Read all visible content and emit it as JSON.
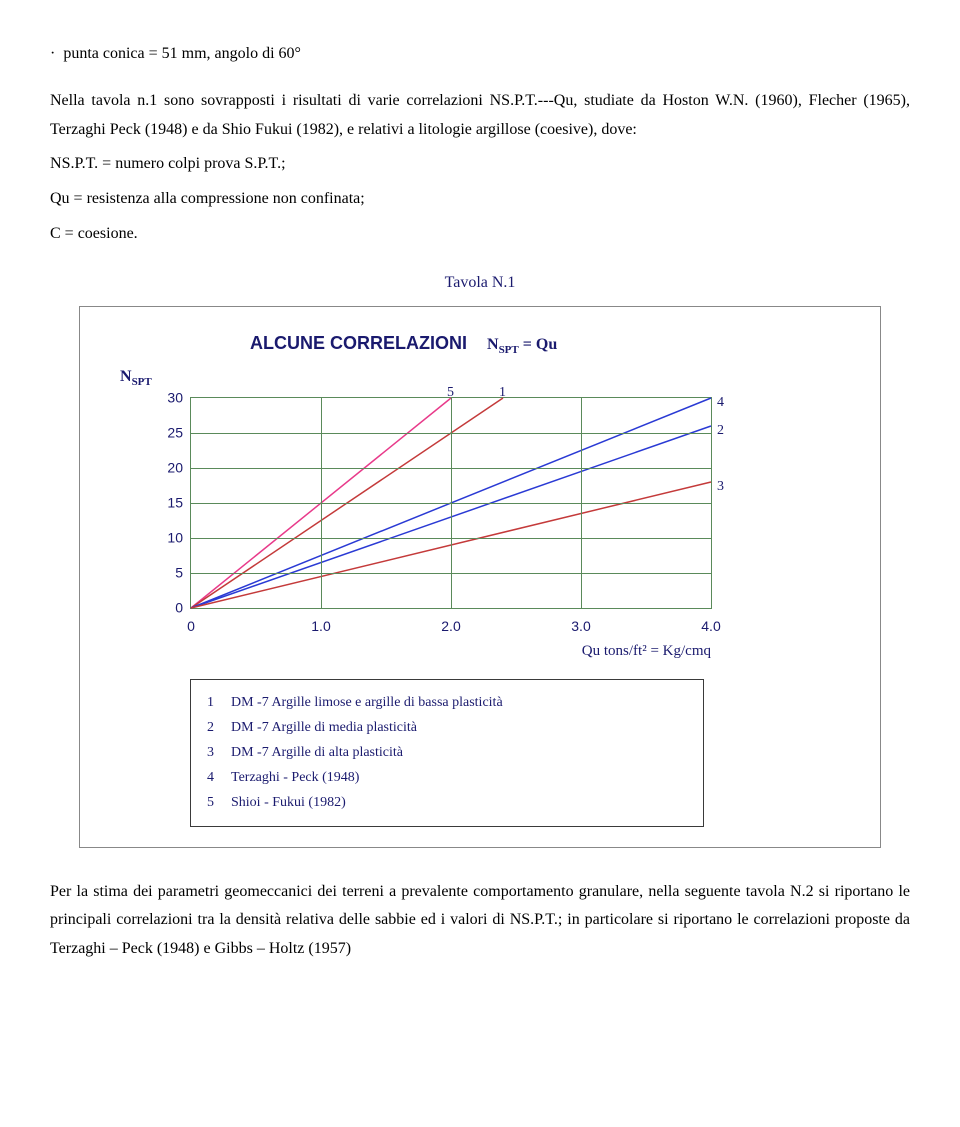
{
  "bullet_line": "punta conica   = 51 mm, angolo di 60°",
  "intro_text": {
    "p1a": "Nella tavola n.1 sono sovrapposti i risultati di varie correlazioni N",
    "p1b": "S.P.T.",
    "p1c": "---Qu, studiate da Hoston W.N. (1960), Flecher (1965), Terzaghi Peck (1948) e da Shio Fukui (1982), e relativi a litologie argillose (coesive), dove:",
    "p2a": "N",
    "p2b": "S.P.T.",
    "p2c": " = numero colpi prova S.P.T.;",
    "p3": "Qu = resistenza alla compressione non confinata;",
    "p4": "C = coesione."
  },
  "tavola_label": "Tavola N.1",
  "chart": {
    "title": "ALCUNE CORRELAZIONI",
    "title_eq_left": "N",
    "title_eq_sub": "SPT",
    "title_eq_right": " = Qu",
    "y_axis_label": "N",
    "y_axis_label_sub": "SPT",
    "x_unit_label": "Qu  tons/ft²  = Kg/cmq",
    "xlim": [
      0,
      4.0
    ],
    "ylim": [
      0,
      30
    ],
    "xticks": [
      "0",
      "1.0",
      "2.0",
      "3.0",
      "4.0"
    ],
    "yticks": [
      "0",
      "5",
      "10",
      "15",
      "20",
      "25",
      "30"
    ],
    "grid_color": "#5a8a5a",
    "series": [
      {
        "id": "5",
        "color": "#e83a8a",
        "x0": 0,
        "y0": 0,
        "x1": 2.0,
        "y1": 30,
        "label_side": "left"
      },
      {
        "id": "1",
        "color": "#c43a3a",
        "x0": 0,
        "y0": 0,
        "x1": 2.4,
        "y1": 30,
        "label_side": "left"
      },
      {
        "id": "4",
        "color": "#2a3ad4",
        "x0": 0,
        "y0": 0,
        "x1": 4.0,
        "y1": 30,
        "label_side": "right"
      },
      {
        "id": "2",
        "color": "#2a3ad4",
        "x0": 0,
        "y0": 0,
        "x1": 4.0,
        "y1": 26,
        "label_side": "right"
      },
      {
        "id": "3",
        "color": "#c43a3a",
        "x0": 0,
        "y0": 0,
        "x1": 4.0,
        "y1": 18,
        "label_side": "right"
      }
    ]
  },
  "legend": {
    "1": "DM -7 Argille limose e argille di bassa plasticità",
    "2": "DM -7 Argille di media plasticità",
    "3": "DM -7 Argille di alta plasticità",
    "4": "Terzaghi - Peck (1948)",
    "5": "Shioi - Fukui (1982)"
  },
  "footer_text": {
    "p1": "Per la stima dei parametri geomeccanici dei terreni a prevalente comportamento granulare, nella seguente tavola N.2 si riportano le principali correlazioni tra la densità relativa delle sabbie ed i valori di N",
    "p1b": "S.P.T.",
    "p1c": "; in particolare si riportano le correlazioni proposte da Terzaghi – Peck (1948) e Gibbs – Holtz (1957)"
  }
}
